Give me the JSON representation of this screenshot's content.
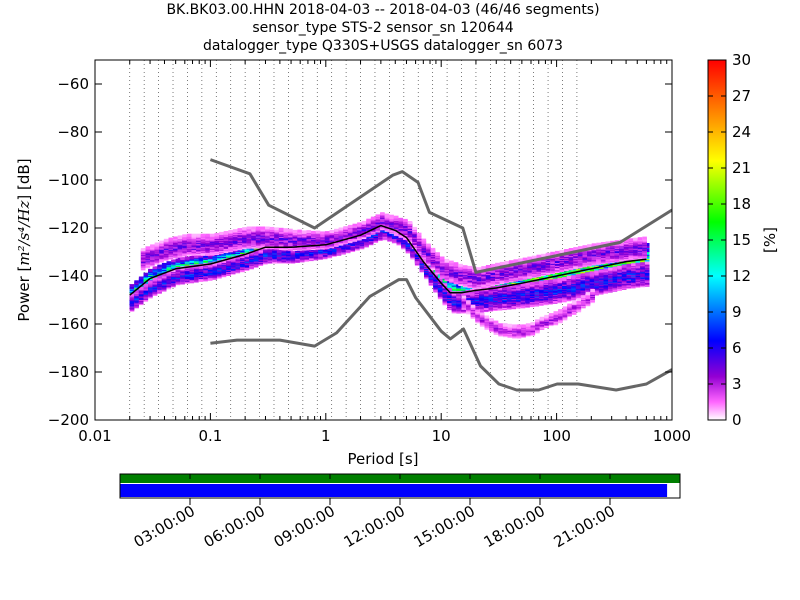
{
  "titles": {
    "line1": "BK.BK03.00.HHN   2018-04-03 -- 2018-04-03  (46/46 segments)",
    "line2": "sensor_type STS-2 sensor_sn 120644",
    "line3": "datalogger_type Q330S+USGS datalogger_sn 6073"
  },
  "chart_data": [
    {
      "type": "heatmap",
      "title": "BK.BK03.00.HHN   2018-04-03 -- 2018-04-03  (46/46 segments)",
      "xlabel": "Period [s]",
      "ylabel_prefix": "Power [",
      "ylabel_unit": "m²/s⁴/Hz",
      "ylabel_suffix": "] [dB]",
      "x_scale": "log",
      "xlim": [
        0.01,
        1000
      ],
      "x_ticks": [
        0.01,
        0.1,
        1,
        10,
        100,
        1000
      ],
      "x_tick_labels": [
        "0.01",
        "0.1",
        "1",
        "10",
        "100",
        "1000"
      ],
      "ylim": [
        -200,
        -50
      ],
      "y_ticks": [
        -200,
        -180,
        -160,
        -140,
        -120,
        -100,
        -80,
        -60
      ],
      "y_tick_labels": [
        "−200",
        "−180",
        "−160",
        "−140",
        "−120",
        "−100",
        "−80",
        "−60"
      ],
      "grid": "dotted vertical lines at each period bin",
      "colorbar": {
        "label": "[%]",
        "range": [
          0,
          30
        ],
        "ticks": [
          0,
          3,
          6,
          9,
          12,
          15,
          18,
          21,
          24,
          27,
          30
        ]
      },
      "noise_model_high": [
        [
          0.1,
          -91.5
        ],
        [
          0.22,
          -97.4
        ],
        [
          0.32,
          -110.5
        ],
        [
          0.8,
          -120
        ],
        [
          3.8,
          -98
        ],
        [
          4.6,
          -96.5
        ],
        [
          6.3,
          -101
        ],
        [
          7.9,
          -113.5
        ],
        [
          15.4,
          -120
        ],
        [
          20,
          -138.5
        ],
        [
          354.8,
          -126
        ],
        [
          1000,
          -112.5
        ]
      ],
      "noise_model_low": [
        [
          0.1,
          -168
        ],
        [
          0.17,
          -166.7
        ],
        [
          0.4,
          -166.7
        ],
        [
          0.8,
          -169.2
        ],
        [
          1.24,
          -163.7
        ],
        [
          2.4,
          -148.6
        ],
        [
          4.3,
          -141.5
        ],
        [
          5,
          -141.5
        ],
        [
          6,
          -149
        ],
        [
          10,
          -163
        ],
        [
          12,
          -166.2
        ],
        [
          15.6,
          -162.1
        ],
        [
          21.9,
          -177.5
        ],
        [
          31.6,
          -185
        ],
        [
          45,
          -187.5
        ],
        [
          70,
          -187.5
        ],
        [
          101,
          -185
        ],
        [
          154,
          -185
        ],
        [
          328,
          -187.5
        ],
        [
          600,
          -185
        ],
        [
          1000,
          -179
        ]
      ],
      "mean_curve": [
        [
          0.02,
          -148
        ],
        [
          0.03,
          -141
        ],
        [
          0.05,
          -137
        ],
        [
          0.1,
          -135
        ],
        [
          0.2,
          -131
        ],
        [
          0.3,
          -128
        ],
        [
          0.5,
          -128
        ],
        [
          1,
          -127
        ],
        [
          2,
          -123
        ],
        [
          3,
          -119
        ],
        [
          4,
          -121
        ],
        [
          5,
          -124
        ],
        [
          7,
          -134
        ],
        [
          10,
          -143
        ],
        [
          12,
          -147
        ],
        [
          15,
          -147
        ],
        [
          20,
          -146
        ],
        [
          30,
          -145
        ],
        [
          50,
          -143
        ],
        [
          100,
          -140
        ],
        [
          200,
          -137
        ],
        [
          400,
          -134
        ],
        [
          600,
          -133
        ]
      ],
      "density_bands": [
        {
          "x": [
            0.02,
            0.03,
            0.05,
            0.1,
            0.2,
            0.3,
            0.5,
            1,
            2,
            3,
            4,
            5,
            7,
            10,
            12,
            15,
            20,
            30,
            50,
            100,
            200,
            400,
            600
          ],
          "y": [
            -148,
            -141,
            -137,
            -135,
            -131,
            -128,
            -128,
            -127,
            -123,
            -119,
            -121,
            -124,
            -134,
            -143,
            -147,
            -147,
            -146,
            -145,
            -143,
            -140,
            -137,
            -134,
            -133
          ],
          "spread": [
            2.5,
            2.5,
            2.5,
            2.5,
            2.5,
            2.5,
            2.5,
            2.0,
            2.0,
            2.0,
            2.5,
            3.0,
            3.0,
            3.5,
            3.5,
            3.5,
            3.5,
            4.0,
            4.0,
            4.0,
            4.0,
            4.0,
            4.0
          ],
          "percent": 15
        },
        {
          "x": [
            0.02,
            0.03,
            0.05,
            0.1,
            0.2,
            0.3,
            0.5,
            1,
            2,
            3,
            4,
            5,
            7,
            10,
            12,
            15,
            20,
            30,
            50,
            100,
            200,
            400,
            600
          ],
          "y": [
            -151,
            -145,
            -140,
            -138,
            -134,
            -131,
            -131,
            -129,
            -125,
            -121,
            -123,
            -127,
            -137,
            -147,
            -151,
            -151,
            -150,
            -149,
            -148,
            -146,
            -143,
            -140,
            -139
          ],
          "spread": [
            2.0,
            2.0,
            2.0,
            2.0,
            2.0,
            2.0,
            2.0,
            2.0,
            2.0,
            2.0,
            2.0,
            2.0,
            2.0,
            2.5,
            2.5,
            2.5,
            3.0,
            3.0,
            3.0,
            3.0,
            3.0,
            3.0,
            3.0
          ],
          "percent": 6
        },
        {
          "x": [
            0.025,
            0.04,
            0.06,
            0.1,
            0.2,
            0.3,
            0.5,
            1,
            2,
            3,
            5,
            7,
            10,
            15,
            20,
            30,
            50,
            100,
            200,
            400,
            600
          ],
          "y": [
            -133,
            -129,
            -127,
            -127,
            -124,
            -124,
            -125,
            -125,
            -121,
            -117,
            -121,
            -130,
            -137,
            -140,
            -141,
            -139,
            -137,
            -134,
            -131,
            -129,
            -128
          ],
          "spread": [
            2.5,
            2.5,
            2.5,
            2.5,
            2.5,
            2.5,
            2.5,
            2.0,
            2.0,
            2.0,
            2.5,
            2.5,
            2.5,
            2.5,
            2.5,
            2.5,
            2.5,
            2.5,
            2.5,
            2.5,
            2.5
          ],
          "percent": 4
        },
        {
          "x": [
            15,
            20,
            25,
            30,
            40,
            50,
            60,
            70,
            100,
            150,
            200
          ],
          "y": [
            -151,
            -157,
            -160,
            -162,
            -163,
            -163,
            -162,
            -160,
            -157,
            -152,
            -148
          ],
          "spread": [
            1.5,
            1.5,
            1.5,
            1.5,
            1.5,
            1.5,
            1.5,
            1.5,
            1.5,
            1.5,
            1.5
          ],
          "percent": 3
        }
      ]
    },
    {
      "type": "timeline",
      "x_tick_labels": [
        "03:00:00",
        "06:00:00",
        "09:00:00",
        "12:00:00",
        "15:00:00",
        "18:00:00",
        "21:00:00"
      ],
      "data_coverage": 0.977,
      "colors": {
        "available": "#007f00",
        "used": "#0000ff"
      }
    }
  ]
}
